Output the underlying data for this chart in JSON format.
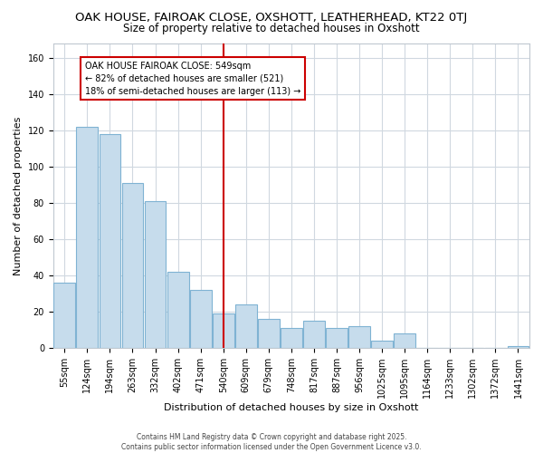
{
  "title": "OAK HOUSE, FAIROAK CLOSE, OXSHOTT, LEATHERHEAD, KT22 0TJ",
  "subtitle": "Size of property relative to detached houses in Oxshott",
  "xlabel": "Distribution of detached houses by size in Oxshott",
  "ylabel": "Number of detached properties",
  "categories": [
    "55sqm",
    "124sqm",
    "194sqm",
    "263sqm",
    "332sqm",
    "402sqm",
    "471sqm",
    "540sqm",
    "609sqm",
    "679sqm",
    "748sqm",
    "817sqm",
    "887sqm",
    "956sqm",
    "1025sqm",
    "1095sqm",
    "1164sqm",
    "1233sqm",
    "1302sqm",
    "1372sqm",
    "1441sqm"
  ],
  "values": [
    36,
    122,
    118,
    91,
    81,
    42,
    32,
    19,
    24,
    16,
    11,
    15,
    11,
    12,
    4,
    8,
    0,
    0,
    0,
    0,
    1
  ],
  "bar_color": "#c6dcec",
  "bar_edgecolor": "#7fb3d3",
  "vline_x_idx": 7,
  "vline_color": "#cc0000",
  "annotation_text": "OAK HOUSE FAIROAK CLOSE: 549sqm\n← 82% of detached houses are smaller (521)\n18% of semi-detached houses are larger (113) →",
  "annotation_box_facecolor": "#ffffff",
  "annotation_box_edgecolor": "#cc0000",
  "ylim": [
    0,
    168
  ],
  "yticks": [
    0,
    20,
    40,
    60,
    80,
    100,
    120,
    140,
    160
  ],
  "footer_text": "Contains HM Land Registry data © Crown copyright and database right 2025.\nContains public sector information licensed under the Open Government Licence v3.0.",
  "title_fontsize": 9.5,
  "subtitle_fontsize": 8.5,
  "axis_label_fontsize": 8,
  "tick_fontsize": 7,
  "annot_fontsize": 7,
  "bg_color": "#ffffff",
  "grid_color": "#d0d8e0",
  "spine_color": "#c0c8d0"
}
